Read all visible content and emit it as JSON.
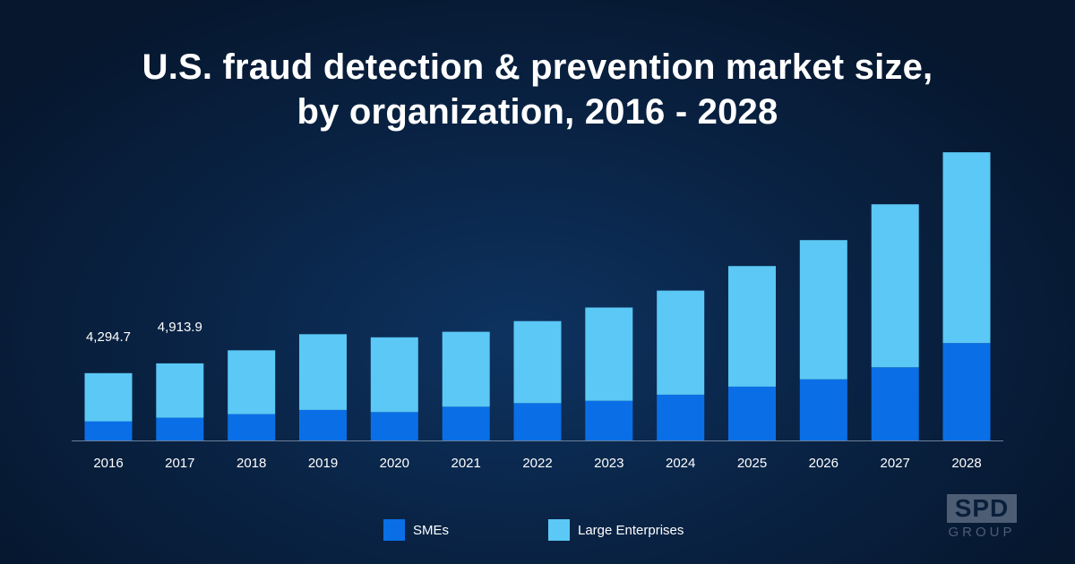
{
  "title": {
    "line1": "U.S. fraud detection & prevention market size,",
    "line2": "by organization, 2016 - 2028"
  },
  "colors": {
    "sme": "#0a6fe6",
    "large": "#5bc8f5",
    "background": "#0a2548"
  },
  "chart_data": {
    "type": "bar",
    "stacked": true,
    "title": "U.S. fraud detection & prevention market size, by organization, 2016 - 2028",
    "categories": [
      "2016",
      "2017",
      "2018",
      "2019",
      "2020",
      "2021",
      "2022",
      "2023",
      "2024",
      "2025",
      "2026",
      "2027",
      "2028"
    ],
    "series": [
      {
        "name": "SMEs",
        "values": [
          1220,
          1450,
          1680,
          1950,
          1810,
          2150,
          2380,
          2530,
          2920,
          3430,
          3900,
          4660,
          6210
        ]
      },
      {
        "name": "Large Enterprises",
        "values": [
          3075,
          3464,
          4070,
          4830,
          4770,
          4780,
          5230,
          5950,
          6640,
          7690,
          8880,
          10400,
          12170
        ]
      }
    ],
    "data_labels": [
      {
        "category": "2016",
        "text": "4,294.7"
      },
      {
        "category": "2017",
        "text": "4,913.9"
      }
    ],
    "ylim": [
      0,
      18500
    ],
    "legend_position": "bottom"
  },
  "legend": {
    "sme_label": "SMEs",
    "large_label": "Large Enterprises"
  },
  "logo": {
    "main": "SPD",
    "sub": "GROUP"
  }
}
